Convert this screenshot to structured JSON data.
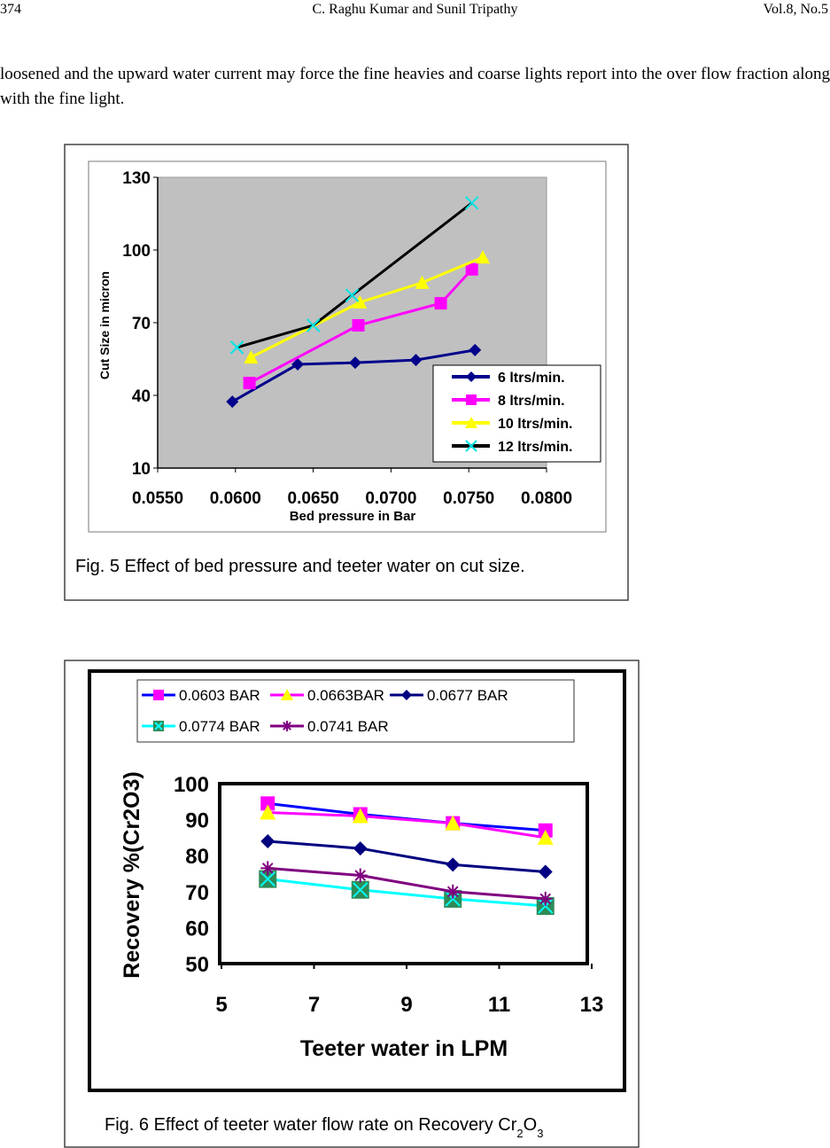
{
  "header": {
    "page_number": "374",
    "authors": "C. Raghu Kumar and Sunil Tripathy",
    "volume": "Vol.8, No.5"
  },
  "body_text": "loosened  and the upward water current may force the fine heavies and coarse lights report into the over flow fraction along with the fine light.",
  "chart_data": [
    {
      "type": "line",
      "caption": "Fig. 5 Effect of  bed pressure and teeter water on cut size.",
      "xlabel": "Bed pressure in Bar",
      "ylabel": "Cut Size in micron",
      "xlim": [
        0.055,
        0.08
      ],
      "ylim": [
        10,
        130
      ],
      "xticks": [
        "0.0550",
        "0.0600",
        "0.0650",
        "0.0700",
        "0.0750",
        "0.0800"
      ],
      "yticks": [
        "10",
        "40",
        "70",
        "100",
        "130"
      ],
      "plot_background": "#c0c0c0",
      "grid": false,
      "legend_position": "bottom-right",
      "series": [
        {
          "name": "6 ltrs/min.",
          "color": "#00008b",
          "marker": "diamond",
          "x": [
            0.0598,
            0.064,
            0.0677,
            0.0716,
            0.0754
          ],
          "y": [
            37.4,
            52.8,
            53.5,
            54.6,
            58.7
          ]
        },
        {
          "name": "8 ltrs/min.",
          "color": "#ff00ff",
          "marker": "square",
          "x": [
            0.0609,
            0.0679,
            0.0732,
            0.0752
          ],
          "y": [
            45.1,
            68.9,
            78,
            92
          ]
        },
        {
          "name": "10 ltrs/min.",
          "color": "#ffff00",
          "marker": "triangle",
          "x": [
            0.061,
            0.068,
            0.072,
            0.0759
          ],
          "y": [
            55.7,
            78.4,
            86.5,
            97
          ]
        },
        {
          "name": "12 ltrs/min.",
          "color": "#000000",
          "marker_color": "#00e5e5",
          "marker": "x",
          "x": [
            0.0601,
            0.065,
            0.0675,
            0.0752
          ],
          "y": [
            59.8,
            68.9,
            81.3,
            119.4
          ]
        }
      ]
    },
    {
      "type": "line",
      "caption": "Fig. 6 Effect of teeter water flow rate on Recovery Cr",
      "caption_sub1": "2",
      "caption_mid": "O",
      "caption_sub2": "3",
      "xlabel": "Teeter water in LPM",
      "ylabel": "Recovery %(Cr2O3)",
      "xlim": [
        5,
        13
      ],
      "ylim": [
        50,
        100
      ],
      "xticks": [
        "5",
        "7",
        "9",
        "11",
        "13"
      ],
      "yticks": [
        "50",
        "60",
        "70",
        "80",
        "90",
        "100"
      ],
      "grid": false,
      "legend_position": "top",
      "x": [
        6,
        8,
        10,
        12
      ],
      "series": [
        {
          "name": "0.0603 BAR",
          "color": "#0000ff",
          "marker_color": "#ff00ff",
          "marker": "square",
          "values": [
            94.5,
            91.5,
            89,
            87
          ]
        },
        {
          "name": "0.0663BAR",
          "color": "#ff00ff",
          "marker_color": "#ffff00",
          "marker": "triangle",
          "values": [
            92,
            91,
            89,
            85
          ]
        },
        {
          "name": "0.0677 BAR",
          "color": "#000080",
          "marker": "diamond",
          "values": [
            84,
            82,
            77.5,
            75.5
          ]
        },
        {
          "name": "0.0774 BAR",
          "color": "#00ffff",
          "marker_color": "#2e8b57",
          "marker": "boxed-x",
          "values": [
            73.5,
            70.5,
            68,
            66
          ]
        },
        {
          "name": "0.0741 BAR",
          "color": "#800080",
          "marker": "star",
          "values": [
            76.5,
            74.5,
            70,
            68
          ]
        }
      ]
    }
  ]
}
